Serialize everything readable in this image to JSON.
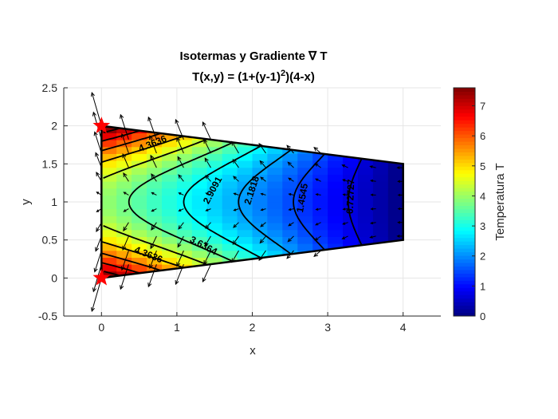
{
  "chart_data": {
    "type": "contour",
    "title": "Isotermas y Gradiente ∇ T",
    "subtitle": "T(x,y) = (1+(y-1)²)(4-x)",
    "xlabel": "x",
    "ylabel": "y",
    "xlim": [
      -0.5,
      4.5
    ],
    "ylim": [
      -0.5,
      2.5
    ],
    "xticks": [
      "0",
      "1",
      "2",
      "3",
      "4"
    ],
    "yticks": [
      "-0.5",
      "0",
      "0.5",
      "1",
      "1.5",
      "2",
      "2.5"
    ],
    "grid": true,
    "colorbar": {
      "label": "Temperatura T",
      "range": [
        0,
        7.6
      ],
      "ticks": [
        "0",
        "1",
        "2",
        "3",
        "4",
        "5",
        "6",
        "7"
      ],
      "colormap": "jet"
    },
    "domain_vertices": [
      [
        0,
        0
      ],
      [
        4,
        0.5
      ],
      [
        4,
        1.5
      ],
      [
        0,
        2
      ]
    ],
    "contour_labels": [
      "4.3636",
      "4.3636",
      "3.6364",
      "2.9091",
      "2.1818",
      "1.4545",
      "0.72727"
    ],
    "marked_points": [
      [
        0,
        2
      ],
      [
        0,
        0
      ]
    ],
    "colors": {
      "marker": "#ff0000",
      "boundary": "#000000",
      "contour": "#000000",
      "grid": "#e6e6e6"
    }
  }
}
